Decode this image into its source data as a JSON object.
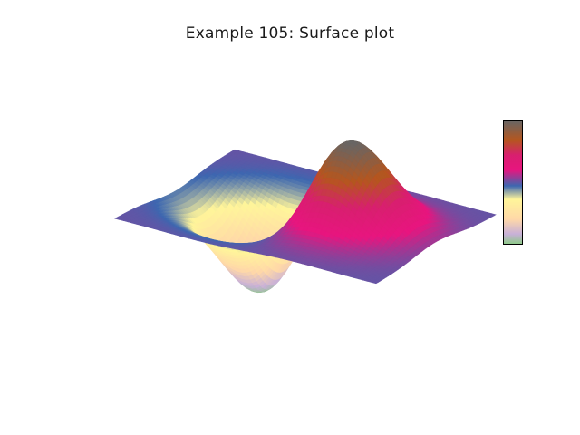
{
  "chart_data": {
    "type": "surface",
    "title": "Example 105: Surface plot",
    "xlabel": "",
    "ylabel": "",
    "zlabel": "",
    "function": "z = x * exp(-x^2 - y^2)",
    "x_range": [
      -2,
      2
    ],
    "y_range": [
      -2,
      2
    ],
    "z_range": [
      -0.43,
      0.43
    ],
    "grid": false,
    "colorbar": "right",
    "colorscale": [
      [
        0.0,
        "#8fc98a"
      ],
      [
        0.08,
        "#c8b0d8"
      ],
      [
        0.2,
        "#ffd8a8"
      ],
      [
        0.36,
        "#fff59a"
      ],
      [
        0.47,
        "#3d67b0"
      ],
      [
        0.6,
        "#e8157f"
      ],
      [
        0.72,
        "#d81f6f"
      ],
      [
        0.84,
        "#b5561e"
      ],
      [
        1.0,
        "#666666"
      ]
    ]
  },
  "colors": {
    "background": "#ffffff",
    "title": "#1a1a1a"
  }
}
